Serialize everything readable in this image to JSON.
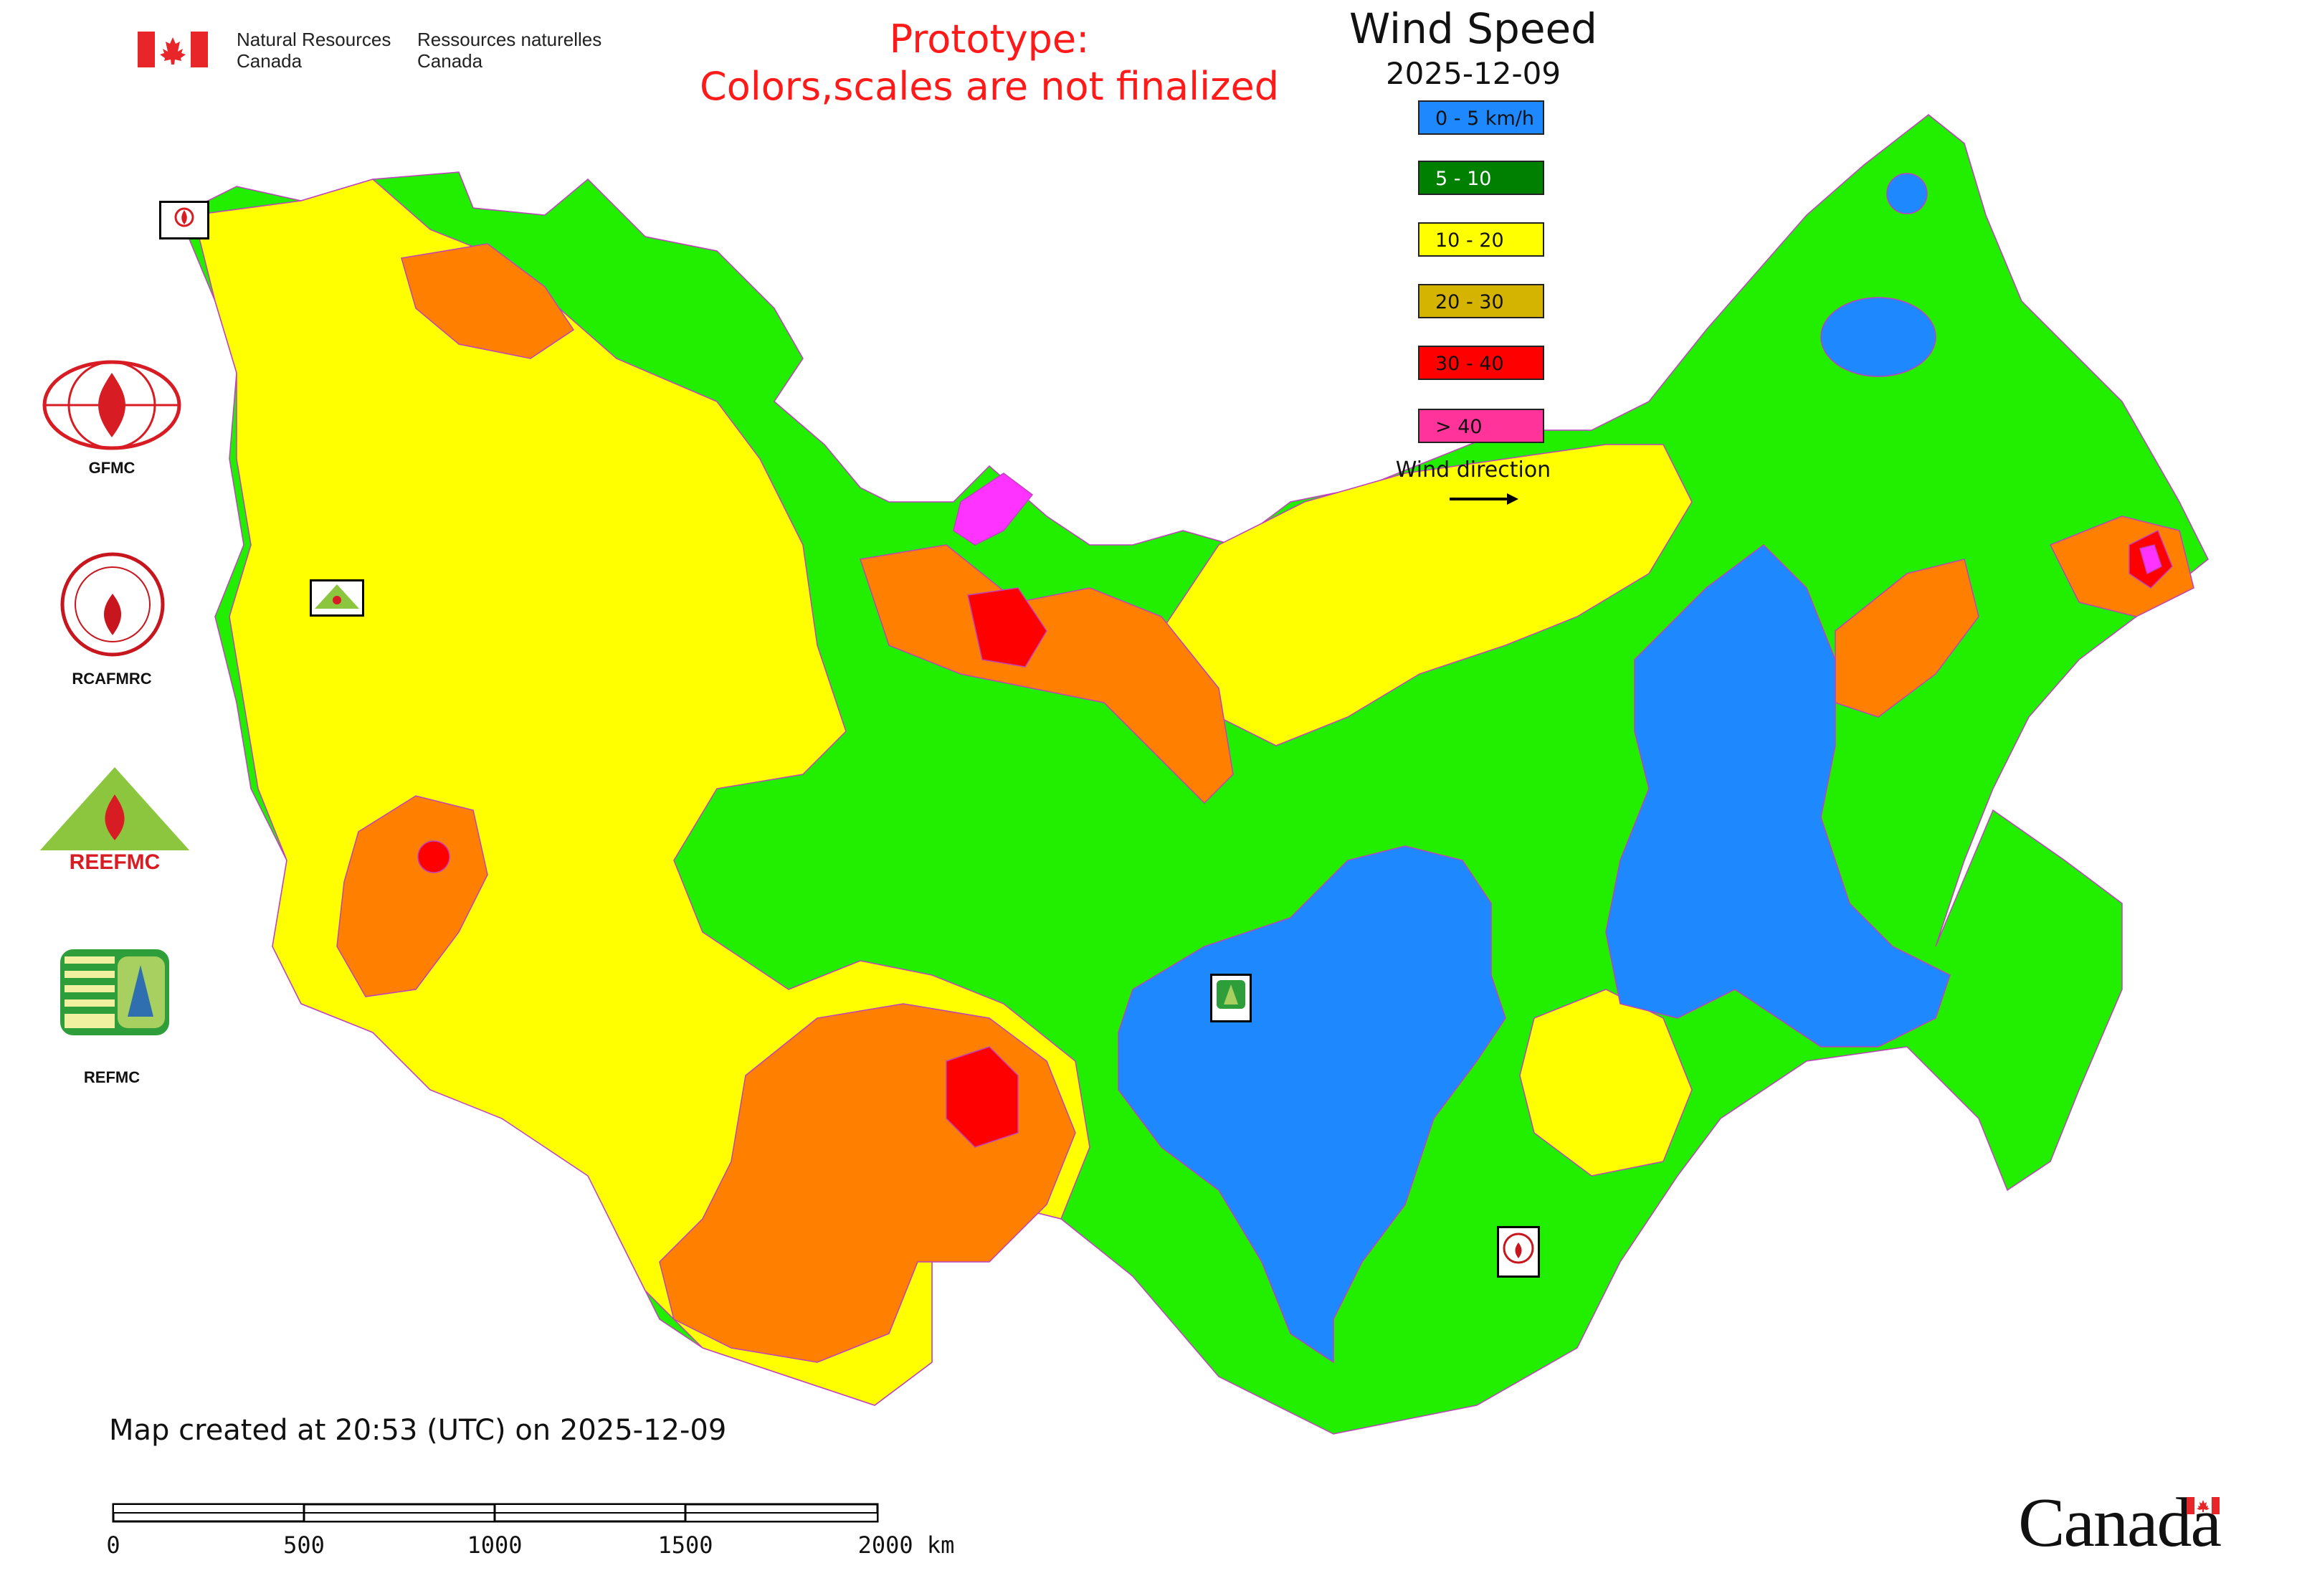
{
  "agency": {
    "name_en": [
      "Natural Resources",
      "Canada"
    ],
    "name_fr": [
      "Ressources naturelles",
      "Canada"
    ]
  },
  "prototype_notice": [
    "Prototype:",
    "Colors,scales are not finalized"
  ],
  "title": "Wind Speed",
  "date": "2025-12-09",
  "legend": [
    {
      "label": "0 - 5 km/h",
      "color": "#1e88ff"
    },
    {
      "label": "5 - 10",
      "color": "#008000"
    },
    {
      "label": "10 - 20",
      "color": "#ffff00"
    },
    {
      "label": "20 - 30",
      "color": "#d4b400"
    },
    {
      "label": "30 - 40",
      "color": "#ff0000"
    },
    {
      "label": "> 40",
      "color": "#ff3399"
    }
  ],
  "wind_direction_label": "Wind direction",
  "map_colors": {
    "calm": "#1e88ff",
    "light": "#22ee00",
    "moderate": "#ffff00",
    "fresh": "#ff8000",
    "strong": "#ff0000",
    "severe": "#ff33ff",
    "border": "#c040c0"
  },
  "organizations": [
    {
      "label": "GFMC"
    },
    {
      "label": "RCAFMRC"
    },
    {
      "label": "REEFMC"
    },
    {
      "label": "REFMC"
    }
  ],
  "map_markers": [
    "GFMC",
    "REEFMC",
    "REFMC",
    "RCAFMRC"
  ],
  "created_text": "Map created at 20:53 (UTC) on 2025-12-09",
  "scale": {
    "labels": [
      "0",
      "500",
      "1000",
      "1500",
      "2000 km"
    ]
  },
  "wordmark": "Canada"
}
